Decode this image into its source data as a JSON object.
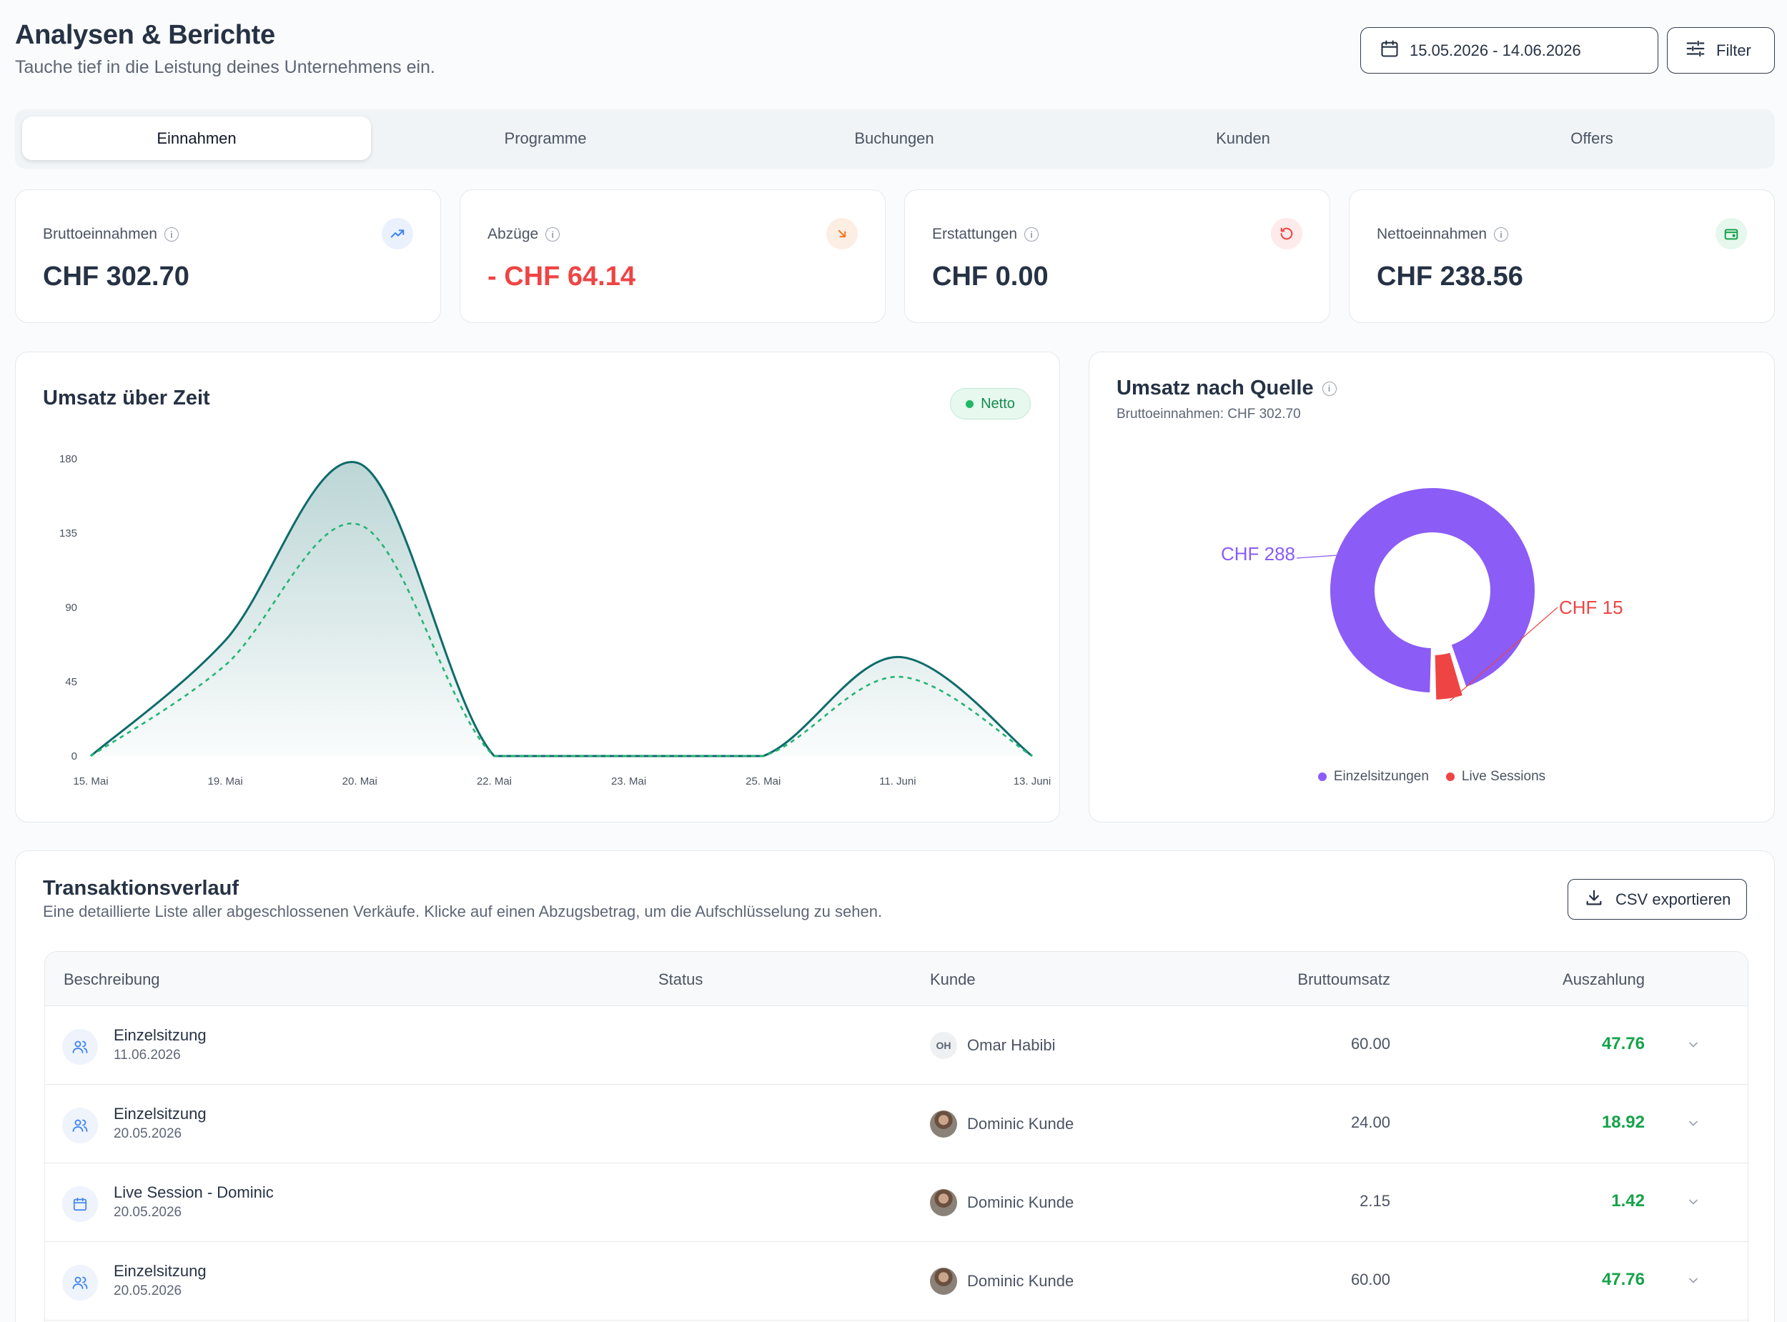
{
  "header": {
    "title": "Analysen & Berichte",
    "subtitle": "Tauche tief in die Leistung deines Unternehmens ein.",
    "date_range": "15.05.2026 - 14.06.2026",
    "filter_label": "Filter"
  },
  "tabs": [
    {
      "label": "Einnahmen",
      "active": true
    },
    {
      "label": "Programme",
      "active": false
    },
    {
      "label": "Buchungen",
      "active": false
    },
    {
      "label": "Kunden",
      "active": false
    },
    {
      "label": "Offers",
      "active": false
    }
  ],
  "kpis": [
    {
      "label": "Bruttoeinnahmen",
      "value": "CHF 302.70",
      "icon": "trend-up-icon"
    },
    {
      "label": "Abzüge",
      "value": "- CHF 64.14",
      "icon": "arrow-down-right-icon"
    },
    {
      "label": "Erstattungen",
      "value": "CHF 0.00",
      "icon": "refresh-icon"
    },
    {
      "label": "Nettoeinnahmen",
      "value": "CHF 238.56",
      "icon": "wallet-icon"
    }
  ],
  "revenue_chart": {
    "title": "Umsatz über Zeit",
    "badge": "Netto"
  },
  "source_chart": {
    "title": "Umsatz nach Quelle",
    "subtitle": "Bruttoeinnahmen: CHF 302.70",
    "label_large": "CHF 288",
    "label_small": "CHF 15",
    "legend": [
      "Einzelsitzungen",
      "Live Sessions"
    ]
  },
  "chart_data": [
    {
      "type": "area",
      "x": [
        "15. Mai",
        "19. Mai",
        "20. Mai",
        "22. Mai",
        "23. Mai",
        "25. Mai",
        "11. Juni",
        "13. Juni"
      ],
      "y_ticks": [
        0,
        45,
        90,
        135,
        180
      ],
      "ylim": [
        0,
        180
      ],
      "series": [
        {
          "values": [
            0,
            70,
            177,
            0,
            0,
            0,
            60,
            0
          ],
          "color": "#0f6b6b"
        },
        {
          "values": [
            0,
            55,
            140,
            0,
            0,
            0,
            48,
            0
          ],
          "color": "#22b573"
        }
      ],
      "grid": false
    },
    {
      "type": "pie",
      "categories": [
        "Einzelsitzungen",
        "Live Sessions"
      ],
      "values": [
        288,
        15
      ],
      "colors": [
        "#8b5cf6",
        "#ef4444"
      ]
    }
  ],
  "transactions": {
    "title": "Transaktionsverlauf",
    "subtitle": "Eine detaillierte Liste aller abgeschlossenen Verkäufe. Klicke auf einen Abzugsbetrag, um die Aufschlüsselung zu sehen.",
    "export_label": "CSV exportieren",
    "columns": [
      "Beschreibung",
      "Status",
      "Kunde",
      "Bruttoumsatz",
      "Auszahlung"
    ],
    "rows": [
      {
        "title": "Einzelsitzung",
        "date": "11.06.2026",
        "customer": "Omar Habibi",
        "initials": "OH",
        "gross": "60.00",
        "payout": "47.76",
        "icon": "users-icon"
      },
      {
        "title": "Einzelsitzung",
        "date": "20.05.2026",
        "customer": "Dominic Kunde",
        "initials": "",
        "gross": "24.00",
        "payout": "18.92",
        "icon": "users-icon"
      },
      {
        "title": "Live Session - Dominic",
        "date": "20.05.2026",
        "customer": "Dominic Kunde",
        "initials": "",
        "gross": "2.15",
        "payout": "1.42",
        "icon": "calendar-icon"
      },
      {
        "title": "Einzelsitzung",
        "date": "20.05.2026",
        "customer": "Dominic Kunde",
        "initials": "",
        "gross": "60.00",
        "payout": "47.76",
        "icon": "users-icon"
      }
    ]
  }
}
